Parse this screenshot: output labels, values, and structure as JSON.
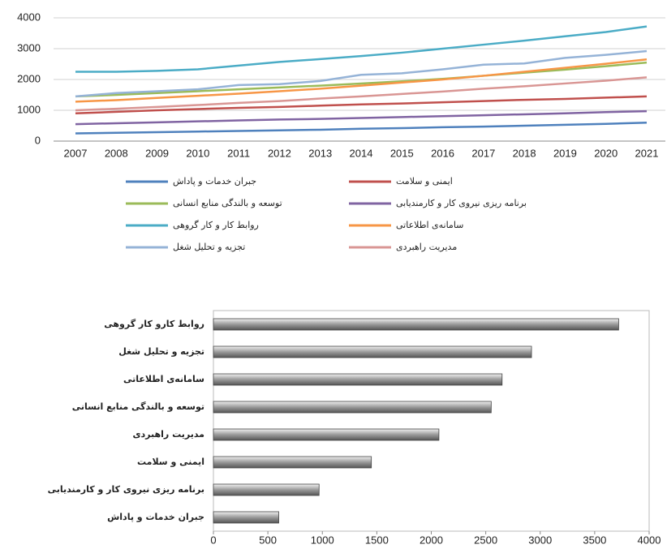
{
  "chart_data": [
    {
      "type": "line",
      "categories": [
        "2007",
        "2008",
        "2009",
        "2010",
        "2011",
        "2012",
        "2013",
        "2014",
        "2015",
        "2016",
        "2017",
        "2018",
        "2019",
        "2020",
        "2021"
      ],
      "ylim": [
        0,
        4000
      ],
      "yticks": [
        0,
        1000,
        2000,
        3000,
        4000
      ],
      "grid": true,
      "series": [
        {
          "name": "جبران خدمات و پاداش",
          "color": "#4f81bd",
          "values": [
            250,
            270,
            290,
            310,
            330,
            350,
            370,
            400,
            420,
            450,
            470,
            500,
            530,
            560,
            600
          ]
        },
        {
          "name": "ایمنی و سلامت",
          "color": "#c0504d",
          "values": [
            900,
            950,
            1000,
            1040,
            1080,
            1110,
            1150,
            1190,
            1220,
            1260,
            1300,
            1340,
            1370,
            1410,
            1450
          ]
        },
        {
          "name": "توسعه و بالندگی منابع انسانی",
          "color": "#9bbb59",
          "values": [
            1450,
            1500,
            1560,
            1620,
            1680,
            1740,
            1800,
            1870,
            1940,
            2020,
            2120,
            2220,
            2320,
            2430,
            2550
          ]
        },
        {
          "name": "برنامه ریزی نیروی کار و کارمندیابی",
          "color": "#8064a2",
          "values": [
            550,
            580,
            610,
            640,
            670,
            700,
            720,
            750,
            780,
            810,
            840,
            870,
            900,
            940,
            970
          ]
        },
        {
          "name": "روابط کار و کار گروهی",
          "color": "#4bacc6",
          "values": [
            2250,
            2250,
            2280,
            2330,
            2450,
            2570,
            2660,
            2760,
            2870,
            3000,
            3130,
            3260,
            3400,
            3540,
            3720
          ]
        },
        {
          "name": "سامانه‌ی اطلاعاتی",
          "color": "#f79646",
          "values": [
            1280,
            1330,
            1400,
            1470,
            1540,
            1620,
            1700,
            1800,
            1900,
            2000,
            2120,
            2250,
            2380,
            2510,
            2650
          ]
        },
        {
          "name": "تجزیه و تحلیل شغل",
          "color": "#95b3d7",
          "values": [
            1450,
            1560,
            1620,
            1680,
            1820,
            1850,
            1950,
            2150,
            2200,
            2330,
            2480,
            2520,
            2700,
            2800,
            2920
          ]
        },
        {
          "name": "مدیریت راهبردی",
          "color": "#d99694",
          "values": [
            1000,
            1050,
            1110,
            1170,
            1240,
            1300,
            1380,
            1450,
            1530,
            1610,
            1700,
            1780,
            1870,
            1960,
            2070
          ]
        }
      ]
    },
    {
      "type": "hbar",
      "categories": [
        "روابط کارو کار گروهی",
        "تجزیه و تحلیل شغل",
        "سامانه‌ی اطلاعاتی",
        "توسعه و بالندگی منابع انسانی",
        "مدیریت راهبردی",
        "ایمنی و سلامت",
        "برنامه ریزی نیروی کار و کارمندیابی",
        "جبران خدمات و پاداش"
      ],
      "values": [
        3720,
        2920,
        2650,
        2550,
        2070,
        1450,
        970,
        600
      ],
      "color": "#8c8c8c",
      "xlim": [
        0,
        4000
      ],
      "xticks": [
        0,
        500,
        1000,
        1500,
        2000,
        2500,
        3000,
        3500,
        4000
      ],
      "grid": false
    }
  ]
}
